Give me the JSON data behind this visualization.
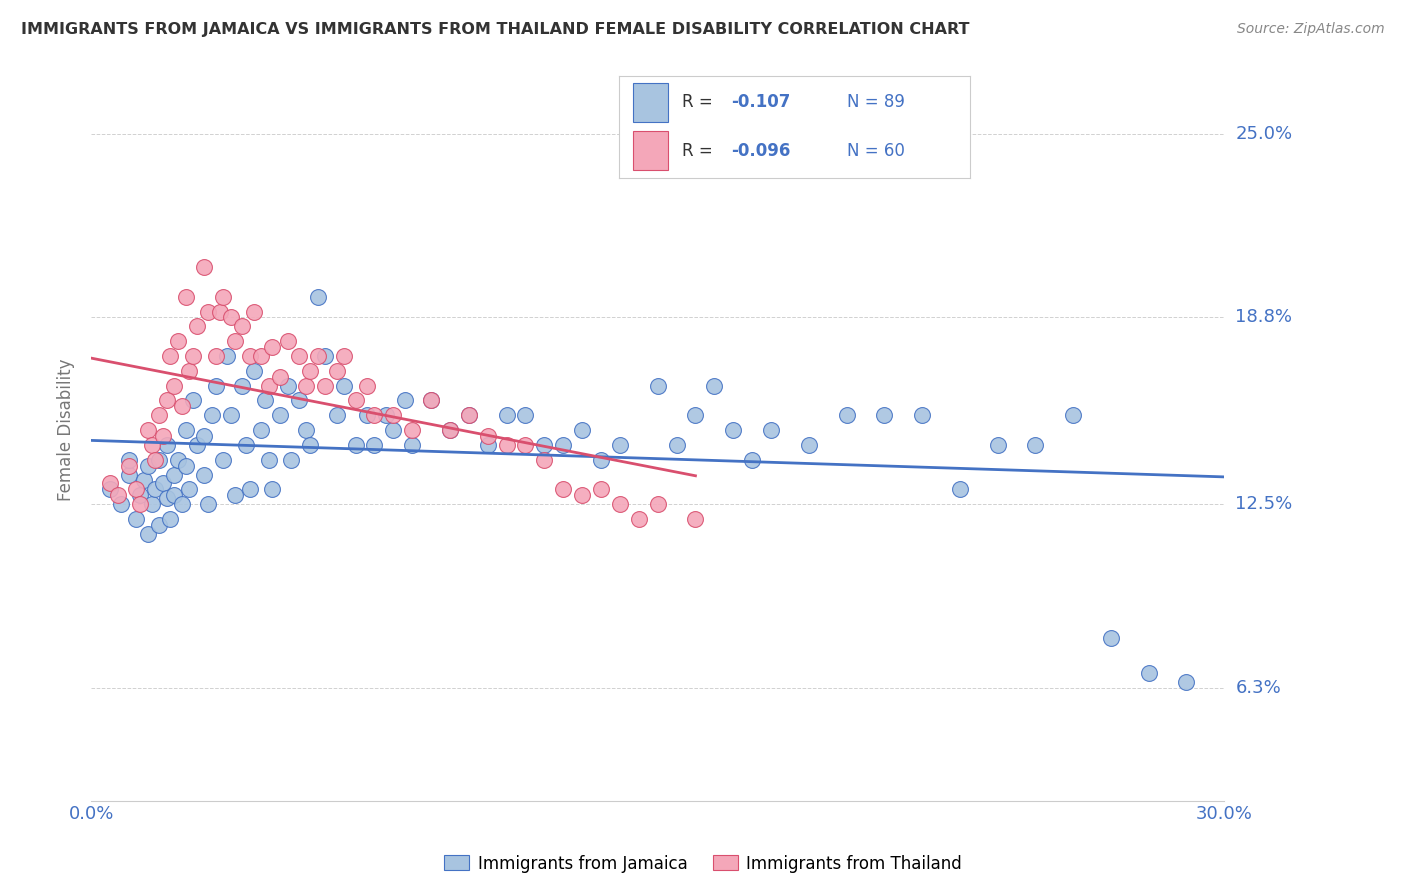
{
  "title": "IMMIGRANTS FROM JAMAICA VS IMMIGRANTS FROM THAILAND FEMALE DISABILITY CORRELATION CHART",
  "source": "Source: ZipAtlas.com",
  "ylabel": "Female Disability",
  "ytick_labels": [
    "6.3%",
    "12.5%",
    "18.8%",
    "25.0%"
  ],
  "ytick_values": [
    0.063,
    0.125,
    0.188,
    0.25
  ],
  "xlim": [
    0.0,
    0.3
  ],
  "ylim": [
    0.025,
    0.275
  ],
  "color_jamaica": "#a8c4e0",
  "color_thailand": "#f4a7b9",
  "trendline_jamaica": "#4472c4",
  "trendline_thailand": "#d94f6e",
  "axis_label_color": "#4472c4",
  "background_color": "#ffffff",
  "jamaica_x": [
    0.005,
    0.008,
    0.01,
    0.01,
    0.012,
    0.013,
    0.014,
    0.015,
    0.015,
    0.016,
    0.017,
    0.018,
    0.018,
    0.019,
    0.02,
    0.02,
    0.021,
    0.022,
    0.022,
    0.023,
    0.024,
    0.025,
    0.025,
    0.026,
    0.027,
    0.028,
    0.03,
    0.03,
    0.031,
    0.032,
    0.033,
    0.035,
    0.036,
    0.037,
    0.038,
    0.04,
    0.041,
    0.042,
    0.043,
    0.045,
    0.046,
    0.047,
    0.048,
    0.05,
    0.052,
    0.053,
    0.055,
    0.057,
    0.058,
    0.06,
    0.062,
    0.065,
    0.067,
    0.07,
    0.073,
    0.075,
    0.078,
    0.08,
    0.083,
    0.085,
    0.09,
    0.095,
    0.1,
    0.105,
    0.11,
    0.115,
    0.12,
    0.125,
    0.13,
    0.135,
    0.14,
    0.15,
    0.155,
    0.16,
    0.165,
    0.17,
    0.175,
    0.18,
    0.19,
    0.2,
    0.21,
    0.22,
    0.23,
    0.24,
    0.25,
    0.26,
    0.27,
    0.28,
    0.29
  ],
  "jamaica_y": [
    0.13,
    0.125,
    0.135,
    0.14,
    0.12,
    0.128,
    0.133,
    0.115,
    0.138,
    0.125,
    0.13,
    0.118,
    0.14,
    0.132,
    0.127,
    0.145,
    0.12,
    0.135,
    0.128,
    0.14,
    0.125,
    0.15,
    0.138,
    0.13,
    0.16,
    0.145,
    0.135,
    0.148,
    0.125,
    0.155,
    0.165,
    0.14,
    0.175,
    0.155,
    0.128,
    0.165,
    0.145,
    0.13,
    0.17,
    0.15,
    0.16,
    0.14,
    0.13,
    0.155,
    0.165,
    0.14,
    0.16,
    0.15,
    0.145,
    0.195,
    0.175,
    0.155,
    0.165,
    0.145,
    0.155,
    0.145,
    0.155,
    0.15,
    0.16,
    0.145,
    0.16,
    0.15,
    0.155,
    0.145,
    0.155,
    0.155,
    0.145,
    0.145,
    0.15,
    0.14,
    0.145,
    0.165,
    0.145,
    0.155,
    0.165,
    0.15,
    0.14,
    0.15,
    0.145,
    0.155,
    0.155,
    0.155,
    0.13,
    0.145,
    0.145,
    0.155,
    0.08,
    0.068,
    0.065
  ],
  "thailand_x": [
    0.005,
    0.007,
    0.01,
    0.012,
    0.013,
    0.015,
    0.016,
    0.017,
    0.018,
    0.019,
    0.02,
    0.021,
    0.022,
    0.023,
    0.024,
    0.025,
    0.026,
    0.027,
    0.028,
    0.03,
    0.031,
    0.033,
    0.034,
    0.035,
    0.037,
    0.038,
    0.04,
    0.042,
    0.043,
    0.045,
    0.047,
    0.048,
    0.05,
    0.052,
    0.055,
    0.057,
    0.058,
    0.06,
    0.062,
    0.065,
    0.067,
    0.07,
    0.073,
    0.075,
    0.08,
    0.085,
    0.09,
    0.095,
    0.1,
    0.105,
    0.11,
    0.115,
    0.12,
    0.125,
    0.13,
    0.135,
    0.14,
    0.145,
    0.15,
    0.16
  ],
  "thailand_y": [
    0.132,
    0.128,
    0.138,
    0.13,
    0.125,
    0.15,
    0.145,
    0.14,
    0.155,
    0.148,
    0.16,
    0.175,
    0.165,
    0.18,
    0.158,
    0.195,
    0.17,
    0.175,
    0.185,
    0.205,
    0.19,
    0.175,
    0.19,
    0.195,
    0.188,
    0.18,
    0.185,
    0.175,
    0.19,
    0.175,
    0.165,
    0.178,
    0.168,
    0.18,
    0.175,
    0.165,
    0.17,
    0.175,
    0.165,
    0.17,
    0.175,
    0.16,
    0.165,
    0.155,
    0.155,
    0.15,
    0.16,
    0.15,
    0.155,
    0.148,
    0.145,
    0.145,
    0.14,
    0.13,
    0.128,
    0.13,
    0.125,
    0.12,
    0.125,
    0.12
  ]
}
